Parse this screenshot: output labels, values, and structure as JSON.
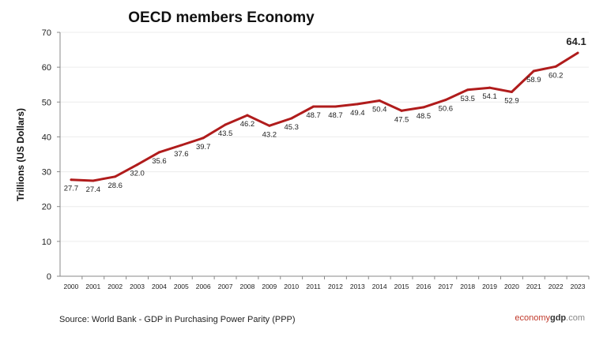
{
  "chart_data": {
    "type": "line",
    "title": "OECD members Economy",
    "ylabel": "Trillions (US Dollars)",
    "xlabel": "",
    "ylim": [
      0,
      70
    ],
    "yticks": [
      0,
      10,
      20,
      30,
      40,
      50,
      60,
      70
    ],
    "grid": true,
    "categories": [
      "2000",
      "2001",
      "2002",
      "2003",
      "2004",
      "2005",
      "2006",
      "2007",
      "2008",
      "2009",
      "2010",
      "2011",
      "2012",
      "2013",
      "2014",
      "2015",
      "2016",
      "2017",
      "2018",
      "2019",
      "2020",
      "2021",
      "2022",
      "2023"
    ],
    "values": [
      27.7,
      27.4,
      28.6,
      32.0,
      35.6,
      37.6,
      39.7,
      43.5,
      46.2,
      43.2,
      45.3,
      48.7,
      48.7,
      49.4,
      50.4,
      47.5,
      48.5,
      50.6,
      53.5,
      54.1,
      52.9,
      58.9,
      60.2,
      64.1
    ],
    "data_labels": [
      "27.7",
      "27.4",
      "28.6",
      "32.0",
      "35.6",
      "37.6",
      "39.7",
      "43.5",
      "46.2",
      "43.2",
      "45.3",
      "48.7",
      "48.7",
      "49.4",
      "50.4",
      "47.5",
      "48.5",
      "50.6",
      "53.5",
      "54.1",
      "52.9",
      "58.9",
      "60.2",
      "64.1"
    ],
    "line_color": "#b01c1c",
    "source": "Source:  World Bank -  GDP  in Purchasing Power Parity (PPP)",
    "logo": {
      "part1": "economy",
      "part2": "gdp",
      "part3": ".com"
    }
  }
}
